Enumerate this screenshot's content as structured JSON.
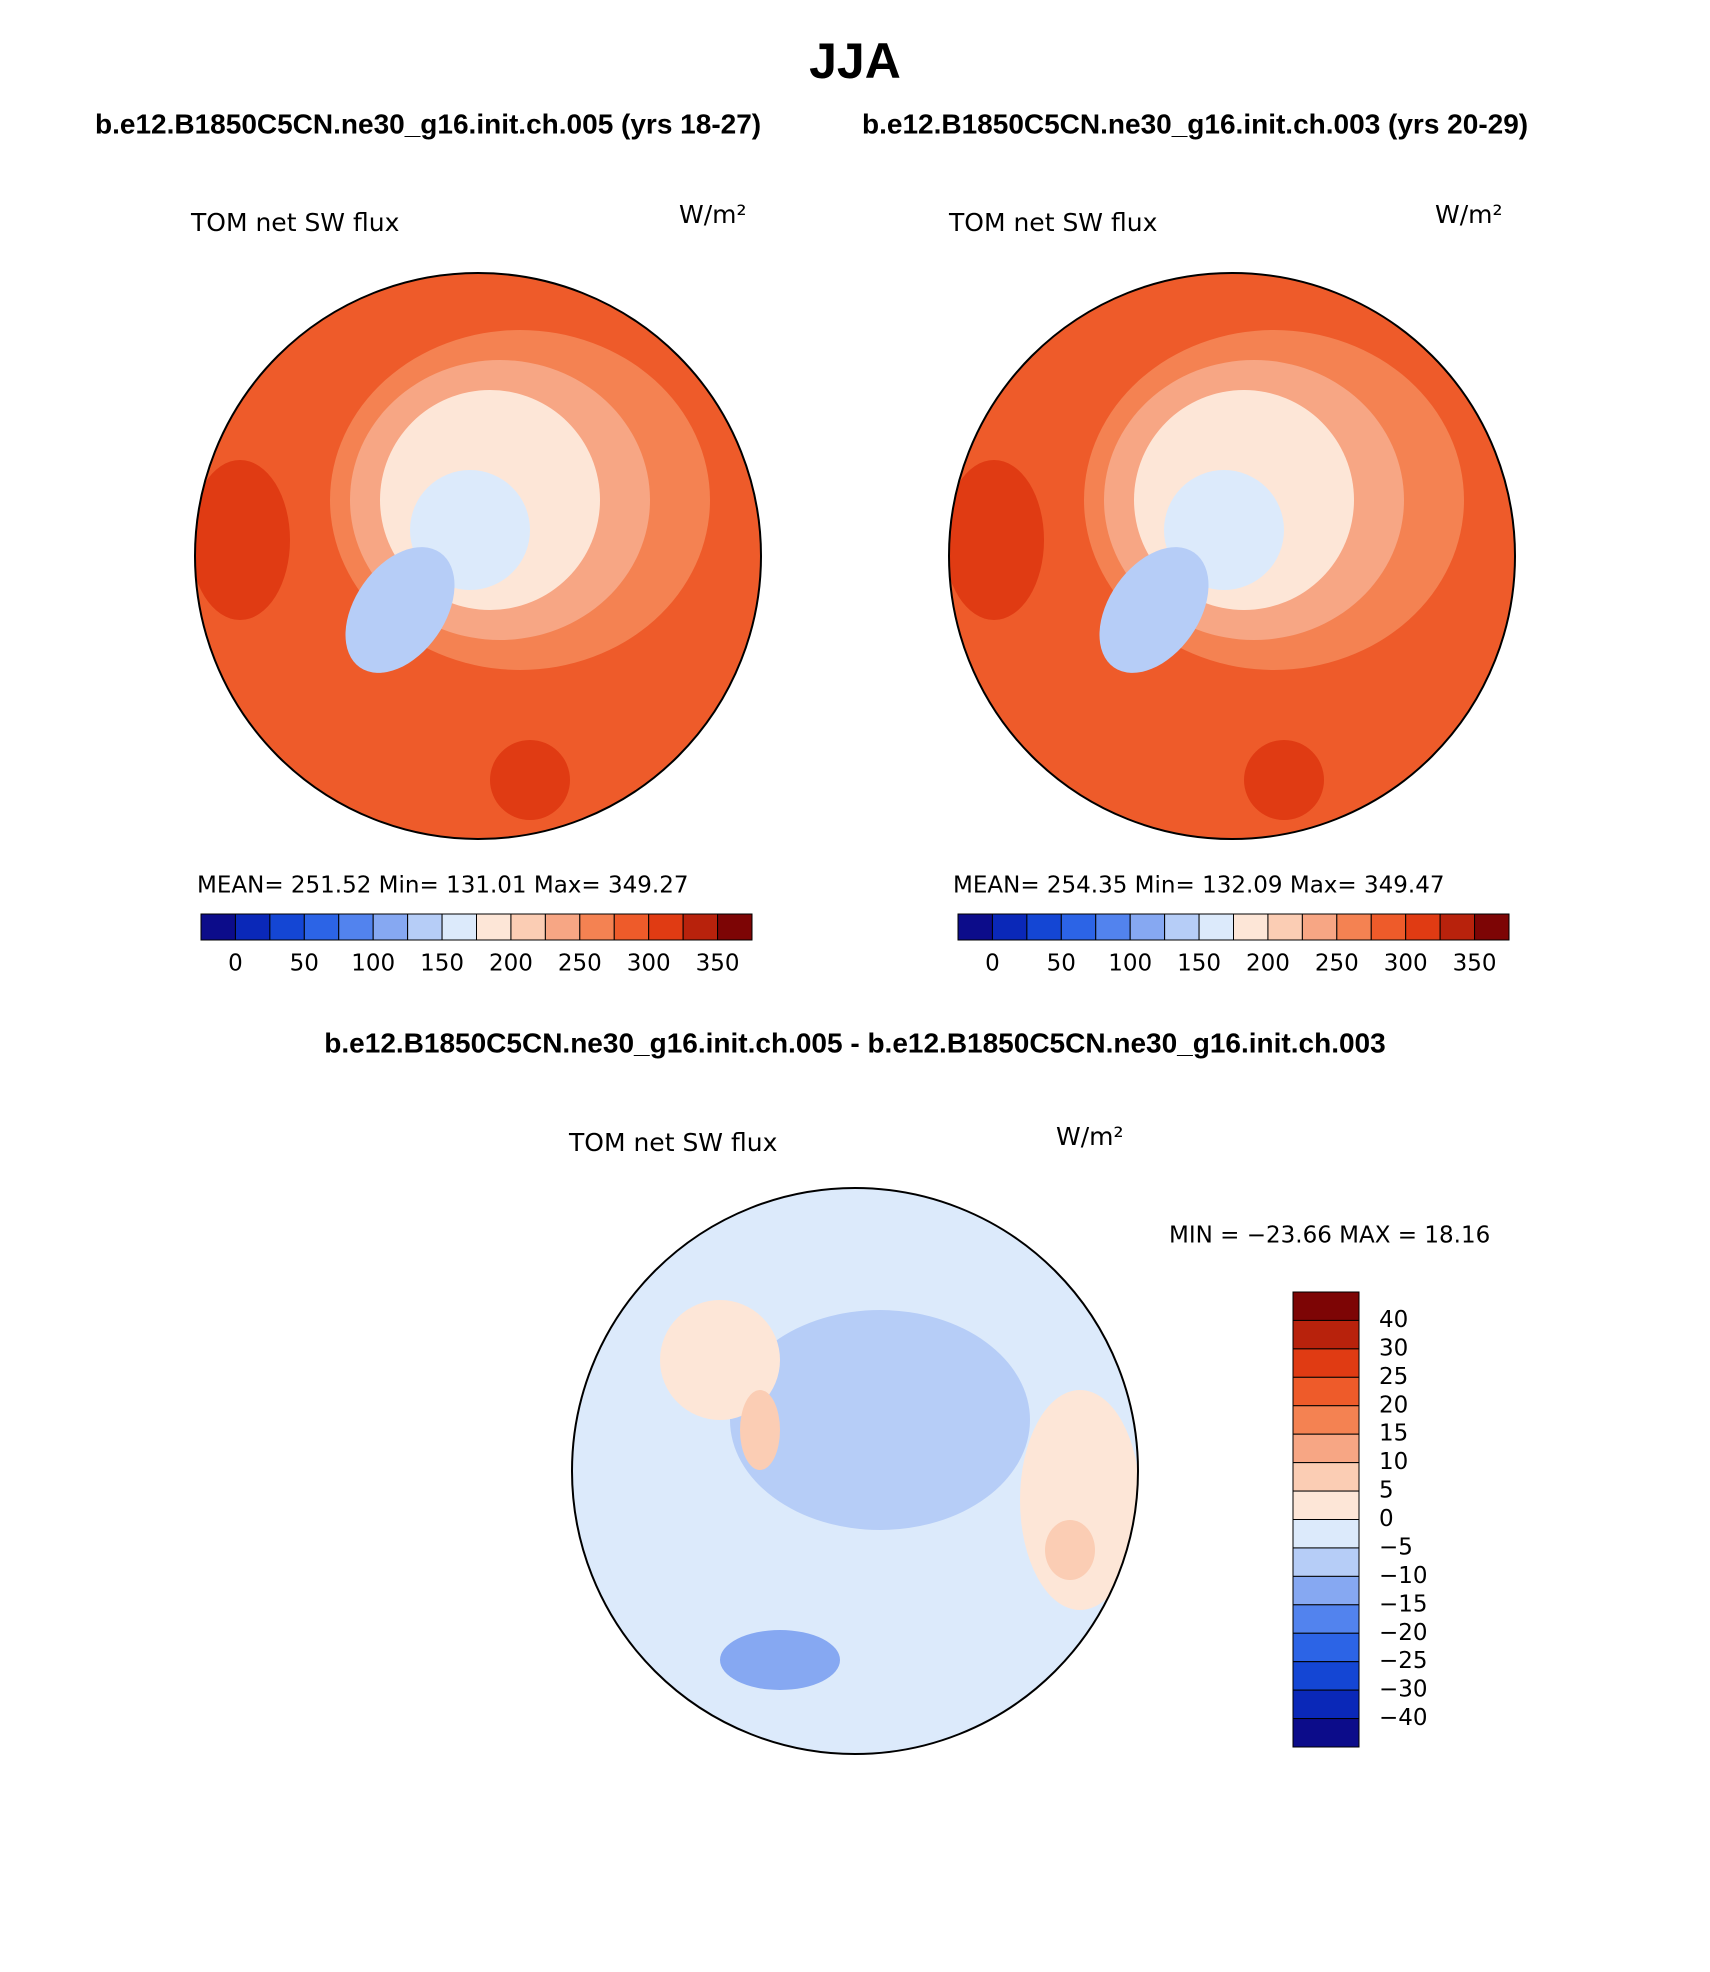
{
  "header": {
    "title": "JJA",
    "subtitle_left": "b.e12.B1850C5CN.ne30_g16.init.ch.005 (yrs 18-27)",
    "subtitle_right": "b.e12.B1850C5CN.ne30_g16.init.ch.003 (yrs 20-29)"
  },
  "panels": [
    {
      "title": "TOM net SW flux",
      "units": "W/m²",
      "stats": "MEAN= 251.52   Min= 131.01   Max= 349.27"
    },
    {
      "title": "TOM net SW flux",
      "units": "W/m²",
      "stats": "MEAN= 254.35   Min= 132.09   Max= 349.47"
    }
  ],
  "colorbar": {
    "colors": [
      "#0c0c8a",
      "#0a28b8",
      "#1446d4",
      "#2c64e6",
      "#5283ee",
      "#86a8f2",
      "#b6cdf7",
      "#dceafb",
      "#fde6d7",
      "#fbcdb4",
      "#f7a684",
      "#f48252",
      "#ee5b2a",
      "#e03b13",
      "#b8220c",
      "#7d0505"
    ],
    "labels": [
      "0",
      "50",
      "100",
      "150",
      "200",
      "250",
      "300",
      "350"
    ]
  },
  "difference": {
    "title": "b.e12.B1850C5CN.ne30_g16.init.ch.005 - b.e12.B1850C5CN.ne30_g16.init.ch.003",
    "panel_title": "TOM net SW flux",
    "units": "W/m²",
    "stats": "MIN = −23.66 MAX =  18.16",
    "colorbar": {
      "colors": [
        "#7d0505",
        "#b8220c",
        "#e03b13",
        "#ee5b2a",
        "#f48252",
        "#f7a684",
        "#fbcdb4",
        "#fde6d7",
        "#dceafb",
        "#b6cdf7",
        "#86a8f2",
        "#5283ee",
        "#2c64e6",
        "#1446d4",
        "#0a28b8",
        "#0c0c8a"
      ],
      "labels": [
        "40",
        "30",
        "25",
        "20",
        "15",
        "10",
        "5",
        "0",
        "−5",
        "−10",
        "−15",
        "−20",
        "−25",
        "−30",
        "−40"
      ]
    }
  }
}
